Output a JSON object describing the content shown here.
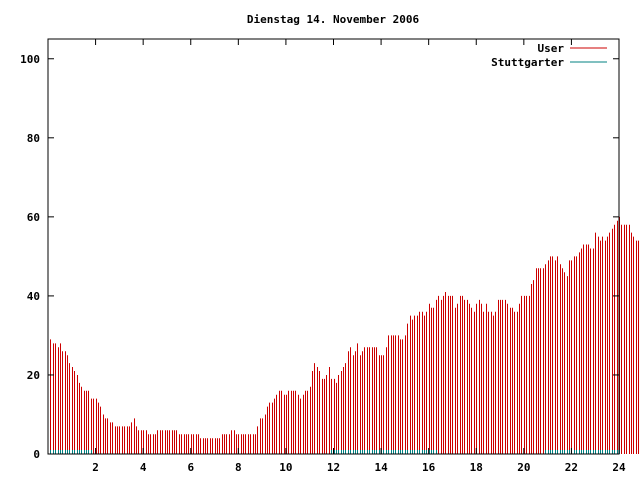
{
  "chart_data": {
    "type": "bar",
    "title": "Dienstag 14. November 2006",
    "xlabel": "",
    "ylabel": "",
    "xlim": [
      0,
      24
    ],
    "ylim": [
      0,
      105
    ],
    "x_ticks": [
      2,
      4,
      6,
      8,
      10,
      12,
      14,
      16,
      18,
      20,
      22,
      24
    ],
    "y_ticks": [
      0,
      20,
      40,
      60,
      80,
      100
    ],
    "grid": false,
    "legend_position": "top-right",
    "series": [
      {
        "name": "User",
        "color": "#cc0000",
        "interval_hours": 0.1,
        "values": [
          29,
          28,
          28,
          27,
          28,
          26,
          26,
          25,
          23,
          22,
          21,
          20,
          18,
          17,
          16,
          16,
          16,
          14,
          14,
          14,
          13,
          12,
          10,
          9,
          9,
          8,
          8,
          7,
          7,
          7,
          7,
          7,
          7,
          7,
          8,
          9,
          7,
          6,
          6,
          6,
          6,
          5,
          5,
          5,
          5,
          6,
          6,
          6,
          6,
          6,
          6,
          6,
          6,
          6,
          5,
          5,
          5,
          5,
          5,
          5,
          5,
          5,
          5,
          4,
          4,
          4,
          4,
          4,
          4,
          4,
          4,
          4,
          5,
          5,
          5,
          5,
          6,
          6,
          5,
          5,
          5,
          5,
          5,
          5,
          5,
          5,
          5,
          7,
          9,
          9,
          10,
          12,
          13,
          13,
          14,
          15,
          16,
          16,
          15,
          15,
          16,
          16,
          16,
          16,
          15,
          14,
          15,
          16,
          16,
          17,
          21,
          23,
          22,
          21,
          19,
          19,
          20,
          22,
          19,
          19,
          18,
          20,
          21,
          22,
          23,
          26,
          27,
          25,
          26,
          28,
          25,
          26,
          27,
          27,
          27,
          27,
          27,
          27,
          25,
          25,
          25,
          27,
          30,
          30,
          30,
          30,
          30,
          29,
          29,
          30,
          33,
          35,
          34,
          35,
          35,
          36,
          36,
          35,
          36,
          38,
          37,
          37,
          39,
          40,
          39,
          40,
          41,
          40,
          40,
          40,
          37,
          38,
          40,
          40,
          39,
          39,
          38,
          37,
          36,
          38,
          39,
          38,
          36,
          38,
          36,
          36,
          35,
          36,
          39,
          39,
          39,
          39,
          38,
          37,
          37,
          36,
          36,
          38,
          40,
          40,
          40,
          40,
          43,
          44,
          47,
          47,
          47,
          47,
          48,
          49,
          50,
          50,
          49,
          50,
          48,
          47,
          46,
          45,
          49,
          49,
          50,
          50,
          51,
          52,
          53,
          53,
          53,
          52,
          52,
          56,
          55,
          54,
          55,
          54,
          55,
          56,
          57,
          58,
          59,
          60,
          58,
          58,
          58,
          58,
          56,
          55,
          54,
          54,
          53,
          55,
          55,
          56,
          53,
          52,
          51,
          49,
          45,
          42,
          41,
          40,
          40,
          39,
          40,
          39,
          37
        ]
      },
      {
        "name": "Stuttgarter",
        "color": "#008080",
        "interval_hours": 0.1,
        "values": [
          1,
          1,
          1,
          1,
          1,
          1,
          1,
          1,
          1,
          1,
          1,
          1,
          1,
          1,
          1,
          1,
          1,
          1,
          0,
          0,
          0,
          0,
          0,
          0,
          0,
          0,
          0,
          0,
          0,
          0,
          0,
          0,
          0,
          0,
          0,
          0,
          0,
          0,
          0,
          0,
          0,
          0,
          0,
          0,
          0,
          0,
          0,
          0,
          0,
          0,
          0,
          0,
          0,
          0,
          0,
          0,
          0,
          0,
          0,
          0,
          0,
          0,
          0,
          0,
          0,
          0,
          0,
          0,
          0,
          0,
          0,
          0,
          0,
          0,
          0,
          0,
          0,
          0,
          0,
          0,
          0,
          0,
          0,
          0,
          0,
          0,
          0,
          0,
          0,
          0,
          0,
          0,
          0,
          0,
          0,
          0,
          0,
          0,
          0,
          0,
          0,
          0,
          0,
          0,
          0,
          0,
          0,
          0,
          0,
          0,
          0,
          0,
          0,
          0,
          0,
          0,
          0,
          0,
          1,
          1,
          1,
          1,
          1,
          1,
          1,
          1,
          1,
          1,
          1,
          1,
          1,
          1,
          1,
          1,
          1,
          1,
          1,
          1,
          1,
          1,
          1,
          1,
          1,
          1,
          1,
          1,
          1,
          1,
          1,
          1,
          1,
          1,
          1,
          1,
          1,
          1,
          1,
          1,
          1,
          1,
          1,
          1,
          1,
          0,
          0,
          0,
          0,
          0,
          0,
          0,
          0,
          0,
          0,
          0,
          0,
          0,
          0,
          0,
          0,
          0,
          0,
          0,
          0,
          0,
          0,
          0,
          0,
          0,
          0,
          0,
          0,
          0,
          0,
          0,
          0,
          0,
          0,
          0,
          0,
          0,
          0,
          0,
          0,
          0,
          0,
          0,
          0,
          0,
          1,
          1,
          1,
          1,
          1,
          1,
          1,
          1,
          1,
          1,
          1,
          1,
          1,
          1,
          1,
          1,
          1,
          1,
          1,
          1,
          1,
          1,
          1,
          1,
          1,
          1,
          1,
          1,
          1,
          1,
          1,
          1,
          0,
          0,
          0,
          0,
          0,
          0,
          0,
          0,
          0,
          0,
          0,
          0,
          0,
          0,
          0,
          0,
          0,
          0,
          0,
          0
        ]
      }
    ]
  }
}
